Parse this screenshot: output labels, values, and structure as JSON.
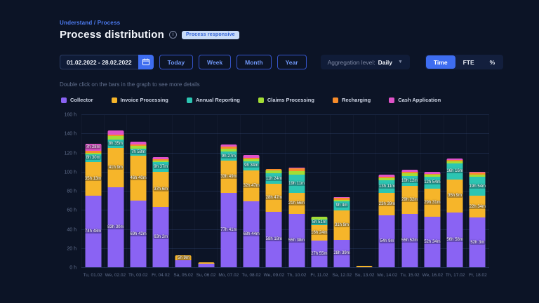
{
  "page": {
    "breadcrumb": "Understand / Process",
    "title": "Process distribution",
    "badge": "Process responsive",
    "hint": "Double click on the bars in the graph to see more details"
  },
  "controls": {
    "date_range": "01.02.2022 - 28.02.2022",
    "calendar_icon": "calendar-icon",
    "range_buttons": [
      "Today",
      "Week",
      "Month",
      "Year"
    ],
    "aggregation_label": "Aggregation level:",
    "aggregation_value": "Daily",
    "chevron_icon": "chevron-down-icon",
    "unit_toggle": [
      {
        "label": "Time",
        "active": true
      },
      {
        "label": "FTE",
        "active": false
      },
      {
        "label": "%",
        "active": false
      }
    ],
    "accent_color": "#3e6df0"
  },
  "chart_data": {
    "type": "bar",
    "variant": "stacked",
    "title": "Process distribution",
    "unit": "hours",
    "ylim": [
      0,
      160
    ],
    "yticks": [
      0,
      20,
      40,
      60,
      80,
      100,
      120,
      140,
      160
    ],
    "ytick_suffix": " h",
    "grid": true,
    "legend_position": "top",
    "categories": [
      "Tu, 01.02",
      "We, 02.02",
      "Th, 03.02",
      "Fr, 04.02",
      "Sa, 05.02",
      "Su, 06.02",
      "Mo, 07.02",
      "Tu, 08.02",
      "We, 09.02",
      "Th, 10.02",
      "Fr, 11.02",
      "Sa, 12.02",
      "Su, 13.02",
      "Mo, 14.02",
      "Tu, 15.02",
      "We, 16.02",
      "Th, 17.02",
      "Fr, 18.02"
    ],
    "series": [
      {
        "name": "Collector",
        "color": "#8a63f3",
        "values": [
          74.8,
          83.5,
          69.7,
          63.03,
          7.0,
          3.5,
          77.68,
          68.73,
          58.3,
          55.63,
          27.92,
          28.65,
          0,
          54.15,
          55.87,
          52.57,
          56.97,
          52.05
        ],
        "labels": [
          "74h 48m",
          "83h 30m",
          "69h 42m",
          "63h 2m",
          "",
          "",
          "77h 41m",
          "68h 44m",
          "58h 18m",
          "55h 38m",
          "27h 55m",
          "28h 39m",
          "",
          "54h 9m",
          "55h 52m",
          "52h 34m",
          "56h 58m",
          "52h 3m"
        ]
      },
      {
        "name": "Invoice Processing",
        "color": "#f6b52a",
        "values": [
          35.22,
          41.15,
          46.67,
          37.1,
          5.15,
          1.5,
          33.82,
          32.78,
          28.78,
          21.93,
          16.4,
          31.15,
          1.2,
          23.65,
          29.53,
          29.52,
          35.15,
          22.57
        ],
        "labels": [
          "35h 13m",
          "41h 9m",
          "46h 40m",
          "37h 6m",
          "5h 9m",
          "",
          "33h 49m",
          "32h 47m",
          "28h 47m",
          "21h 56m",
          "16h 24m",
          "31h 9m",
          "",
          "23h 39m",
          "29h 32m",
          "29h 31m",
          "35h 9m",
          "22h 34m"
        ]
      },
      {
        "name": "Annual Reporting",
        "color": "#2cc5b2",
        "values": [
          8.5,
          8.58,
          7.97,
          9.62,
          0,
          0,
          9.45,
          9.57,
          11.4,
          19.18,
          5.85,
          9.07,
          0,
          13.18,
          10.2,
          12.9,
          16.27,
          19.9
        ],
        "labels": [
          "8h 30m",
          "8h 35m",
          "7h 58m",
          "9h 37m",
          "",
          "",
          "9h 27m",
          "9h 34m",
          "11h 24m",
          "19h 11m",
          "5h 51m",
          "9h 4m",
          "",
          "13h 11m",
          "10h 12m",
          "12h 54m",
          "16h 16m",
          "19h 54m"
        ]
      },
      {
        "name": "Claims Processing",
        "color": "#a3dd35",
        "values": [
          1.5,
          4.0,
          3.0,
          2.0,
          0,
          0,
          3.0,
          2.0,
          2.5,
          3.5,
          2.5,
          1.5,
          0,
          2.5,
          3.0,
          2.0,
          2.5,
          2.5
        ],
        "labels": [
          "",
          "",
          "",
          "",
          "",
          "",
          "",
          "",
          "",
          "",
          "",
          "",
          "",
          "",
          "",
          "",
          "",
          ""
        ]
      },
      {
        "name": "Recharging",
        "color": "#f78c2a",
        "values": [
          1.8,
          1.5,
          1.0,
          1.0,
          0,
          0,
          2.5,
          1.5,
          2.0,
          3.0,
          0,
          2.5,
          0,
          1.0,
          1.0,
          0.8,
          1.5,
          2.0
        ],
        "labels": [
          "",
          "",
          "",
          "",
          "",
          "",
          "",
          "",
          "",
          "",
          "",
          "",
          "",
          "",
          "",
          "",
          "",
          ""
        ]
      },
      {
        "name": "Cash Application",
        "color": "#e052c8",
        "values": [
          7.47,
          4.5,
          3.0,
          2.5,
          0,
          0,
          2.0,
          3.0,
          0,
          0.8,
          0,
          0.5,
          0,
          2.5,
          2.5,
          2.0,
          1.5,
          1.0
        ],
        "labels": [
          "7h 28m",
          "",
          "",
          "",
          "",
          "",
          "",
          "",
          "",
          "",
          "",
          "",
          "",
          "",
          "",
          "",
          "",
          ""
        ]
      }
    ]
  }
}
